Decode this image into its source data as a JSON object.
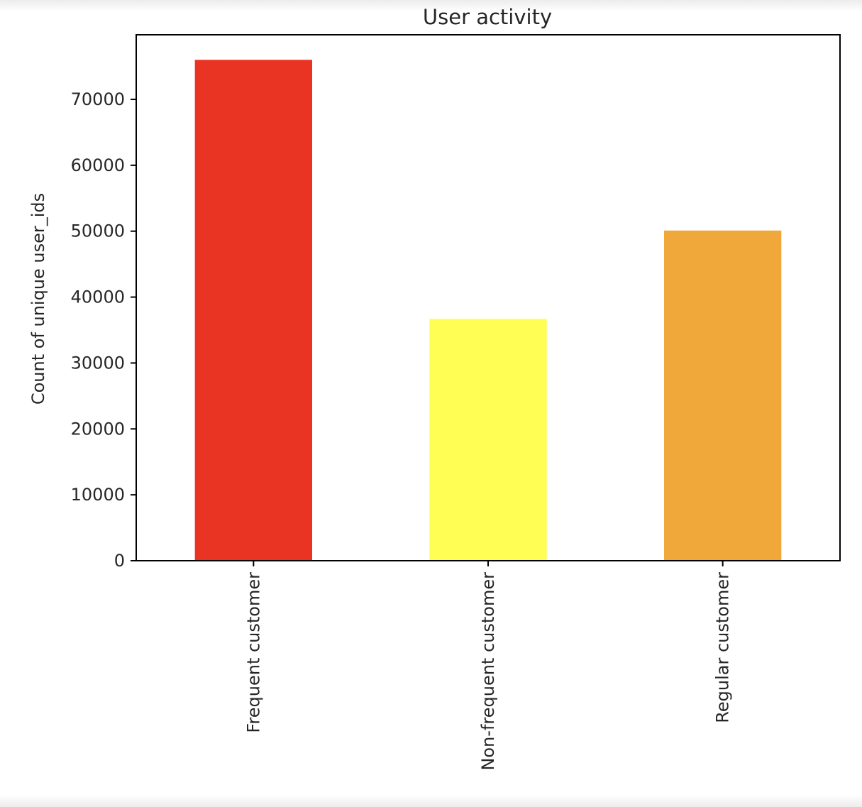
{
  "chart_data": {
    "type": "bar",
    "title": "User activity",
    "xlabel": "",
    "ylabel": "Count of unique user_ids",
    "categories": [
      "Frequent customer",
      "Non-frequent customer",
      "Regular customer"
    ],
    "values": [
      76000,
      36700,
      50100
    ],
    "colors": [
      "#e93323",
      "#fffe54",
      "#f0a83b"
    ],
    "ylim": [
      0,
      79800
    ],
    "yticks": [
      0,
      10000,
      20000,
      30000,
      40000,
      50000,
      60000,
      70000
    ],
    "ytick_labels": [
      "0",
      "10000",
      "20000",
      "30000",
      "40000",
      "50000",
      "60000",
      "70000"
    ],
    "grid": false,
    "legend": "none"
  }
}
